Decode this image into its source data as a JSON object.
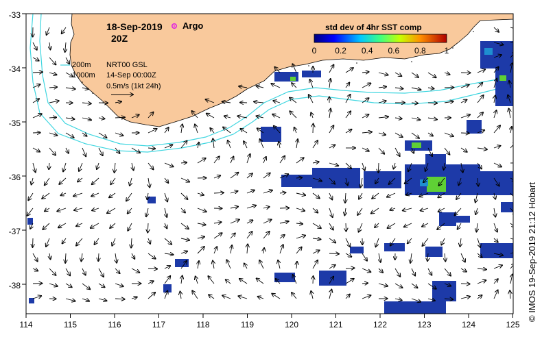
{
  "title": {
    "date": "18-Sep-2019",
    "time": "20Z"
  },
  "legend_argo": "Argo",
  "colorbar": {
    "title": "std dev of 4hr SST comp",
    "ticks": [
      "0",
      "0.2",
      "0.4",
      "0.6",
      "0.8",
      "1"
    ]
  },
  "notes": {
    "contour_200": "200m",
    "contour_1000": "1000m",
    "product": "NRT00 GSL",
    "analysis_time": "14-Sep 00:00Z",
    "velocity_scale": "0.5m/s (1kt 24h)"
  },
  "credit": "© IMOS 19-Sep-2019 21:12 Hobart",
  "axes": {
    "x_ticks": [
      "114",
      "115",
      "116",
      "117",
      "118",
      "119",
      "120",
      "121",
      "122",
      "123",
      "124",
      "125"
    ],
    "y_ticks": [
      "-33",
      "-34",
      "-35",
      "-36",
      "-37",
      "-38"
    ]
  },
  "colors": {
    "land": "#f9c99c",
    "contour": "#3fd6e0",
    "sst_low": "#1d3aa8",
    "sst_mid": "#5fd035",
    "argo_marker": "#e022e0"
  }
}
